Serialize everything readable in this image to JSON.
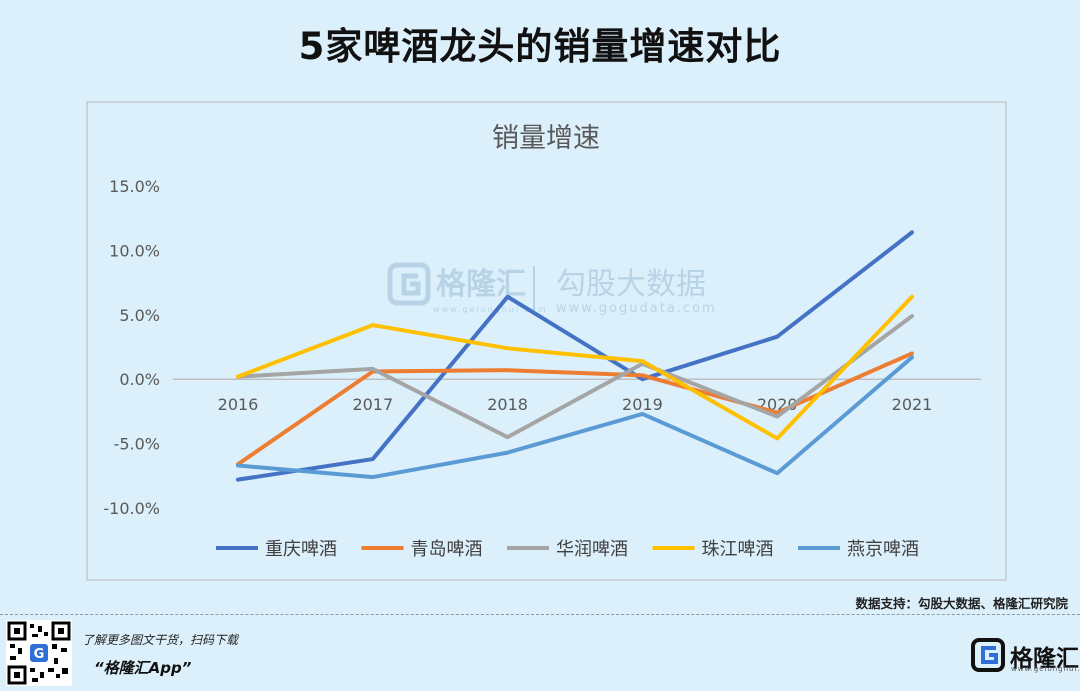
{
  "page": {
    "title": "5家啤酒龙头的销量增速对比",
    "source": "数据支持：勾股大数据、格隆汇研究院",
    "promo_line1": "了解更多图文干货，扫码下载",
    "promo_line2": "“格隆汇App”",
    "brand": "格隆汇",
    "brand_url": "www.gelonghui.com"
  },
  "watermark": {
    "brand": "格隆汇",
    "brand_url": "www.gelonghui.com",
    "partner": "勾股大数据",
    "partner_url": "www.gogudata.com"
  },
  "colors": {
    "background": "#dcf0fb",
    "axis": "#bfbfbf"
  },
  "chart_data": {
    "type": "line",
    "title": "销量增速",
    "x": [
      "2016",
      "2017",
      "2018",
      "2019",
      "2020",
      "2021"
    ],
    "y_ticks": [
      "15.0%",
      "10.0%",
      "5.0%",
      "0.0%",
      "-5.0%",
      "-10.0%"
    ],
    "ylim": [
      -10,
      15
    ],
    "ylabel": "",
    "xlabel": "",
    "grid": false,
    "legend_position": "bottom",
    "series": [
      {
        "name": "重庆啤酒",
        "color": "#4472c4",
        "values": [
          -7.8,
          -6.2,
          6.4,
          0.0,
          3.3,
          11.4
        ]
      },
      {
        "name": "青岛啤酒",
        "color": "#ed7d31",
        "values": [
          -6.6,
          0.6,
          0.7,
          0.3,
          -2.6,
          2.0
        ]
      },
      {
        "name": "华润啤酒",
        "color": "#a5a5a5",
        "values": [
          0.2,
          0.8,
          -4.5,
          1.2,
          -2.9,
          4.9
        ]
      },
      {
        "name": "珠江啤酒",
        "color": "#ffc000",
        "values": [
          0.2,
          4.2,
          2.4,
          1.4,
          -4.6,
          6.4
        ]
      },
      {
        "name": "燕京啤酒",
        "color": "#5b9bd5",
        "values": [
          -6.7,
          -7.6,
          -5.7,
          -2.7,
          -7.3,
          1.7
        ]
      }
    ]
  }
}
